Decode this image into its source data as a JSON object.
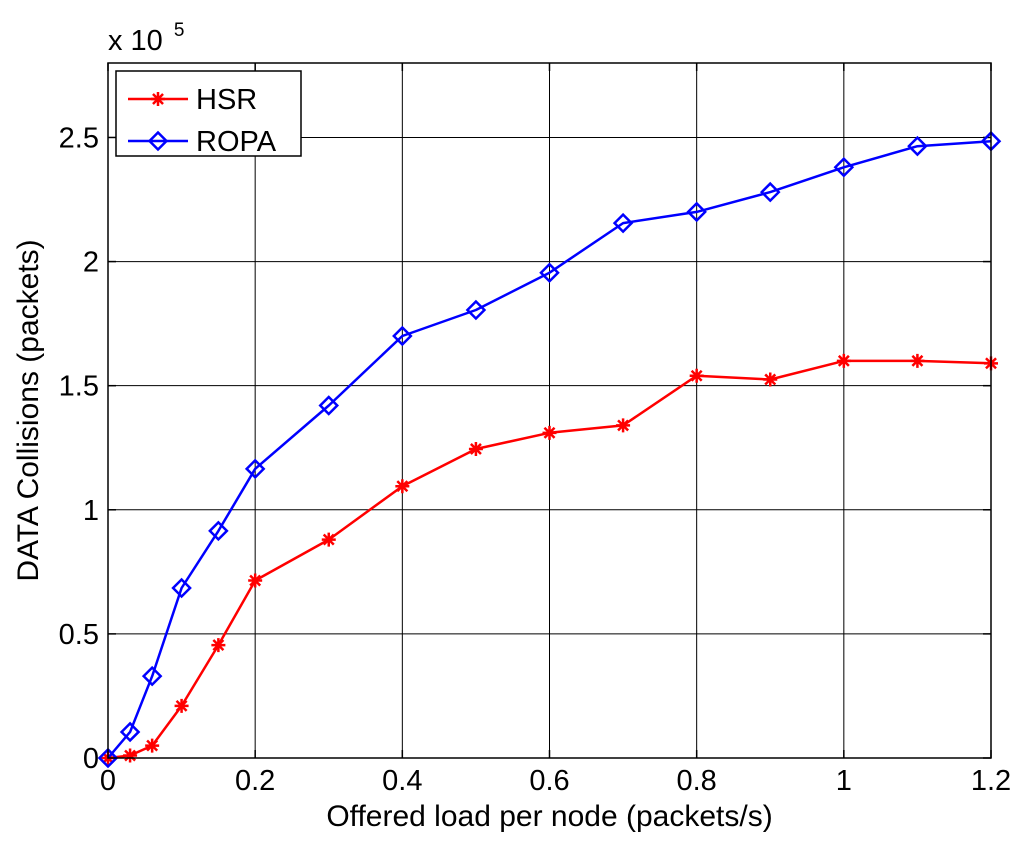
{
  "chart_data": {
    "type": "line",
    "title": "",
    "xlabel": "Offered load per node (packets/s)",
    "ylabel": "DATA Collisions (packets)",
    "xlim": [
      0,
      1.2
    ],
    "ylim": [
      0,
      2.8
    ],
    "xticks": [
      0,
      0.2,
      0.4,
      0.6,
      0.8,
      1,
      1.2
    ],
    "xtick_labels": [
      "0",
      "0.2",
      "0.4",
      "0.6",
      "0.8",
      "1",
      "1.2"
    ],
    "yticks": [
      0,
      0.5,
      1,
      1.5,
      2,
      2.5
    ],
    "ytick_labels": [
      "0",
      "0.5",
      "1",
      "1.5",
      "2",
      "2.5"
    ],
    "y_scale_base": "x 10",
    "y_scale_exponent": "5",
    "grid": true,
    "legend_position": "top-left",
    "series": [
      {
        "name": "HSR",
        "color": "#ff0000",
        "marker": "asterisk",
        "x": [
          0,
          0.03,
          0.06,
          0.1,
          0.15,
          0.2,
          0.3,
          0.4,
          0.5,
          0.6,
          0.7,
          0.8,
          0.9,
          1,
          1.1,
          1.2
        ],
        "y": [
          0,
          0.01,
          0.05,
          0.21,
          0.455,
          0.715,
          0.88,
          1.095,
          1.245,
          1.31,
          1.34,
          1.54,
          1.525,
          1.6,
          1.6,
          1.59
        ]
      },
      {
        "name": "ROPA",
        "color": "#0000ff",
        "marker": "diamond",
        "x": [
          0,
          0.03,
          0.06,
          0.1,
          0.15,
          0.2,
          0.3,
          0.4,
          0.5,
          0.6,
          0.7,
          0.8,
          0.9,
          1,
          1.1,
          1.2
        ],
        "y": [
          0,
          0.105,
          0.33,
          0.685,
          0.915,
          1.165,
          1.42,
          1.7,
          1.805,
          1.955,
          2.155,
          2.2,
          2.28,
          2.38,
          2.465,
          2.485
        ]
      }
    ]
  }
}
